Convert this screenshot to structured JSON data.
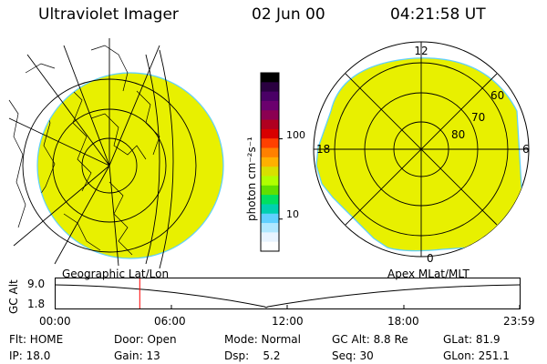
{
  "header": {
    "title": "Ultraviolet Imager",
    "date": "02 Jun 00",
    "time": "04:21:58 UT"
  },
  "left_map": {
    "caption": "Geographic Lat/Lon",
    "fill_color": "#e8f000"
  },
  "right_map": {
    "caption": "Apex MLat/MLT",
    "fill_color": "#e8f000",
    "mlt_labels": [
      "12",
      "18",
      "6",
      "0"
    ],
    "mlat_labels": [
      "60",
      "70",
      "80"
    ]
  },
  "colorbar": {
    "unit_label": "photon cm⁻²s⁻¹",
    "tick_labels": [
      "100",
      "10"
    ],
    "colors": [
      "#000000",
      "#2a0040",
      "#4a0066",
      "#6b006e",
      "#8b0052",
      "#b00020",
      "#d80000",
      "#ff4000",
      "#ff8000",
      "#ffb000",
      "#d8e000",
      "#b0ff00",
      "#60e000",
      "#00e060",
      "#00d0b0",
      "#60d0ff",
      "#b0e8ff",
      "#e8f4ff",
      "#ffffff"
    ]
  },
  "altitude_plot": {
    "ylabel": "GC Alt",
    "y_ticks": [
      "9.0",
      "1.8"
    ],
    "x_ticks": [
      "00:00",
      "06:00",
      "12:00",
      "18:00",
      "23:59"
    ],
    "marker_time": "04:21:58",
    "marker_color": "#ff0000"
  },
  "info": {
    "row1": {
      "flt": "Flt: HOME",
      "door": "Door: Open",
      "mode": "Mode: Normal",
      "gc_alt": "GC Alt: 8.8 Re",
      "glat": "GLat: 81.9"
    },
    "row2": {
      "ip": "IP: 18.0",
      "gain": "Gain: 13",
      "dsp": "Dsp:    5.2",
      "seq": "Seq: 30",
      "glon": "GLon: 251.1"
    }
  }
}
